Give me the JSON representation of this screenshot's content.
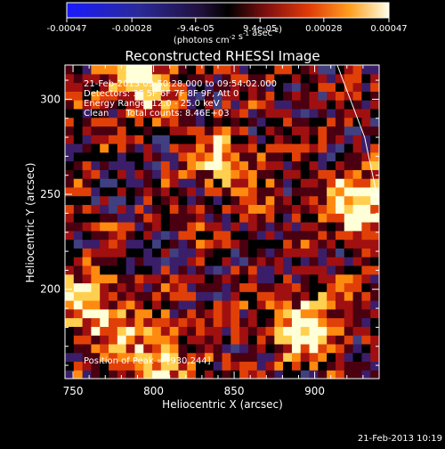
{
  "chart_data": {
    "type": "heatmap",
    "title": "Reconstructed RHESSI Image",
    "xlabel": "Heliocentric X (arcsec)",
    "ylabel": "Heliocentric Y (arcsec)",
    "xlim": [
      745,
      940
    ],
    "ylim": [
      153,
      318
    ],
    "xticks": [
      750,
      800,
      850,
      900
    ],
    "yticks": [
      200,
      250,
      300
    ],
    "annotations": [
      "21-Feb-2013 09:50:28.000 to 09:54:02.000",
      "Detectors: 3F 5F 6F 7F 8F 9F, Att 0",
      "Energy Range: 12.0 - 25.0 keV",
      "Clean      Total counts: 8.46E+03"
    ],
    "peak_label": "Position of Peak = [930,244]",
    "peak": {
      "x": 930,
      "y": 244
    },
    "colorbar": {
      "ticks": [
        "-0.00047",
        "-0.00028",
        "-9.4e-05",
        "9.4e-05",
        "0.00028",
        "0.00047"
      ],
      "tick_values": [
        -0.00047,
        -0.00028,
        -9.4e-05,
        9.4e-05,
        0.00028,
        0.00047
      ],
      "range": [
        -0.00047,
        0.00047
      ],
      "unit_label": "(photons cm<sup>-2</sup> s<sup>-1</sup> asec<sup>-2</sup>)",
      "unit_text": "(photons cm-2 s-1 asec-2)"
    },
    "colormap": [
      "#000070",
      "#2030f0",
      "#404080",
      "#3a1e6a",
      "#000000",
      "#4a0010",
      "#a01010",
      "#e04008",
      "#ff8a10",
      "#ffd050",
      "#ffffd8"
    ],
    "bright_regions": [
      {
        "x": 790,
        "y": 310,
        "value": 0.0004
      },
      {
        "x": 760,
        "y": 190,
        "value": 0.00042
      },
      {
        "x": 800,
        "y": 165,
        "value": 0.00038
      },
      {
        "x": 895,
        "y": 180,
        "value": 0.00044
      },
      {
        "x": 930,
        "y": 244,
        "value": 0.00047
      },
      {
        "x": 845,
        "y": 265,
        "value": 0.0003
      }
    ],
    "limb_line": [
      [
        914,
        318
      ],
      [
        931,
        280
      ],
      [
        940,
        244
      ]
    ],
    "grid": false
  },
  "footer": {
    "timestamp": "21-Feb-2013 10:19"
  }
}
